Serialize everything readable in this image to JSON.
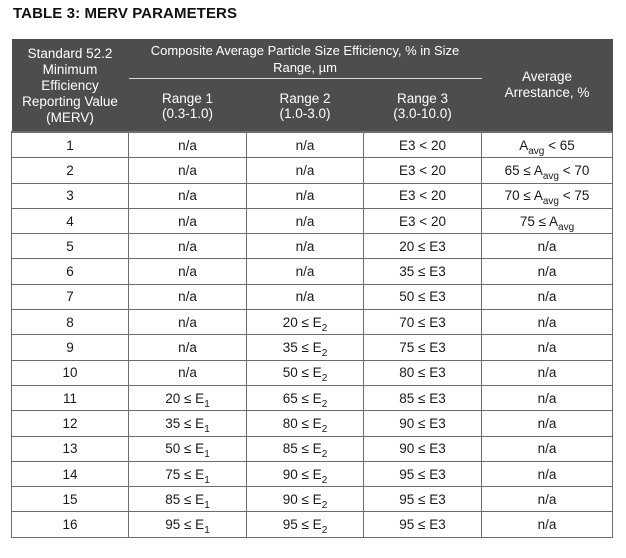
{
  "title": "TABLE 3: MERV PARAMETERS",
  "header": {
    "standard": [
      "Standard 52.2",
      "Minimum",
      "Efficiency",
      "Reporting Value",
      "(MERV)"
    ],
    "composite": "Composite Average Particle Size Efficiency, % in Size Range, µm",
    "range1": {
      "name": "Range 1",
      "span": "(0.3-1.0)"
    },
    "range2": {
      "name": "Range 2",
      "span": "(1.0-3.0)"
    },
    "range3": {
      "name": "Range 3",
      "span": "(3.0-10.0)"
    },
    "arrestance": [
      "Average",
      "Arrestance, %"
    ]
  },
  "rows": [
    {
      "merv": "1",
      "r1": "n/a",
      "r2": "n/a",
      "r3": "E3 < 20",
      "arr": "Aavg < 65"
    },
    {
      "merv": "2",
      "r1": "n/a",
      "r2": "n/a",
      "r3": "E3 < 20",
      "arr": "65 ≤ Aavg < 70"
    },
    {
      "merv": "3",
      "r1": "n/a",
      "r2": "n/a",
      "r3": "E3 < 20",
      "arr": "70 ≤ Aavg < 75"
    },
    {
      "merv": "4",
      "r1": "n/a",
      "r2": "n/a",
      "r3": "E3 < 20",
      "arr": "75 ≤ Aavg"
    },
    {
      "merv": "5",
      "r1": "n/a",
      "r2": "n/a",
      "r3": "20 ≤ E3",
      "arr": "n/a"
    },
    {
      "merv": "6",
      "r1": "n/a",
      "r2": "n/a",
      "r3": "35 ≤ E3",
      "arr": "n/a"
    },
    {
      "merv": "7",
      "r1": "n/a",
      "r2": "n/a",
      "r3": "50 ≤ E3",
      "arr": "n/a"
    },
    {
      "merv": "8",
      "r1": "n/a",
      "r2": "20 ≤ E2",
      "r3": "70 ≤ E3",
      "arr": "n/a"
    },
    {
      "merv": "9",
      "r1": "n/a",
      "r2": "35 ≤ E2",
      "r3": "75 ≤ E3",
      "arr": "n/a"
    },
    {
      "merv": "10",
      "r1": "n/a",
      "r2": "50 ≤ E2",
      "r3": "80 ≤ E3",
      "arr": "n/a"
    },
    {
      "merv": "11",
      "r1": "20 ≤ E1",
      "r2": "65 ≤ E2",
      "r3": "85 ≤ E3",
      "arr": "n/a"
    },
    {
      "merv": "12",
      "r1": "35 ≤ E1",
      "r2": "80 ≤ E2",
      "r3": "90 ≤ E3",
      "arr": "n/a"
    },
    {
      "merv": "13",
      "r1": "50 ≤ E1",
      "r2": "85 ≤ E2",
      "r3": "90 ≤ E3",
      "arr": "n/a"
    },
    {
      "merv": "14",
      "r1": "75 ≤ E1",
      "r2": "90 ≤ E2",
      "r3": "95 ≤ E3",
      "arr": "n/a"
    },
    {
      "merv": "15",
      "r1": "85 ≤ E1",
      "r2": "90 ≤ E2",
      "r3": "95 ≤ E3",
      "arr": "n/a"
    },
    {
      "merv": "16",
      "r1": "95 ≤ E1",
      "r2": "95 ≤ E2",
      "r3": "95 ≤ E3",
      "arr": "n/a"
    }
  ]
}
